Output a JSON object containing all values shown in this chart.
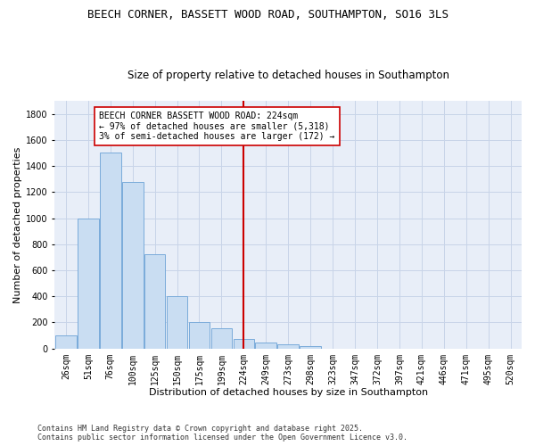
{
  "title": "BEECH CORNER, BASSETT WOOD ROAD, SOUTHAMPTON, SO16 3LS",
  "subtitle": "Size of property relative to detached houses in Southampton",
  "xlabel": "Distribution of detached houses by size in Southampton",
  "ylabel": "Number of detached properties",
  "categories": [
    "26sqm",
    "51sqm",
    "76sqm",
    "100sqm",
    "125sqm",
    "150sqm",
    "175sqm",
    "199sqm",
    "224sqm",
    "249sqm",
    "273sqm",
    "298sqm",
    "323sqm",
    "347sqm",
    "372sqm",
    "397sqm",
    "421sqm",
    "446sqm",
    "471sqm",
    "495sqm",
    "520sqm"
  ],
  "values": [
    100,
    1000,
    1500,
    1280,
    720,
    400,
    205,
    155,
    75,
    45,
    30,
    17,
    0,
    0,
    0,
    0,
    0,
    0,
    0,
    0,
    0
  ],
  "bar_color": "#c9ddf2",
  "bar_edge_color": "#7aabda",
  "vline_x_index": 8,
  "vline_color": "#cc0000",
  "annotation_text": "BEECH CORNER BASSETT WOOD ROAD: 224sqm\n← 97% of detached houses are smaller (5,318)\n3% of semi-detached houses are larger (172) →",
  "annotation_box_color": "#ffffff",
  "annotation_box_edge": "#cc0000",
  "ylim": [
    0,
    1900
  ],
  "yticks": [
    0,
    200,
    400,
    600,
    800,
    1000,
    1200,
    1400,
    1600,
    1800
  ],
  "grid_color": "#c8d4e8",
  "background_color": "#e8eef8",
  "footer_line1": "Contains HM Land Registry data © Crown copyright and database right 2025.",
  "footer_line2": "Contains public sector information licensed under the Open Government Licence v3.0.",
  "title_fontsize": 9,
  "subtitle_fontsize": 8.5,
  "axis_label_fontsize": 8,
  "tick_fontsize": 7,
  "annotation_fontsize": 7
}
